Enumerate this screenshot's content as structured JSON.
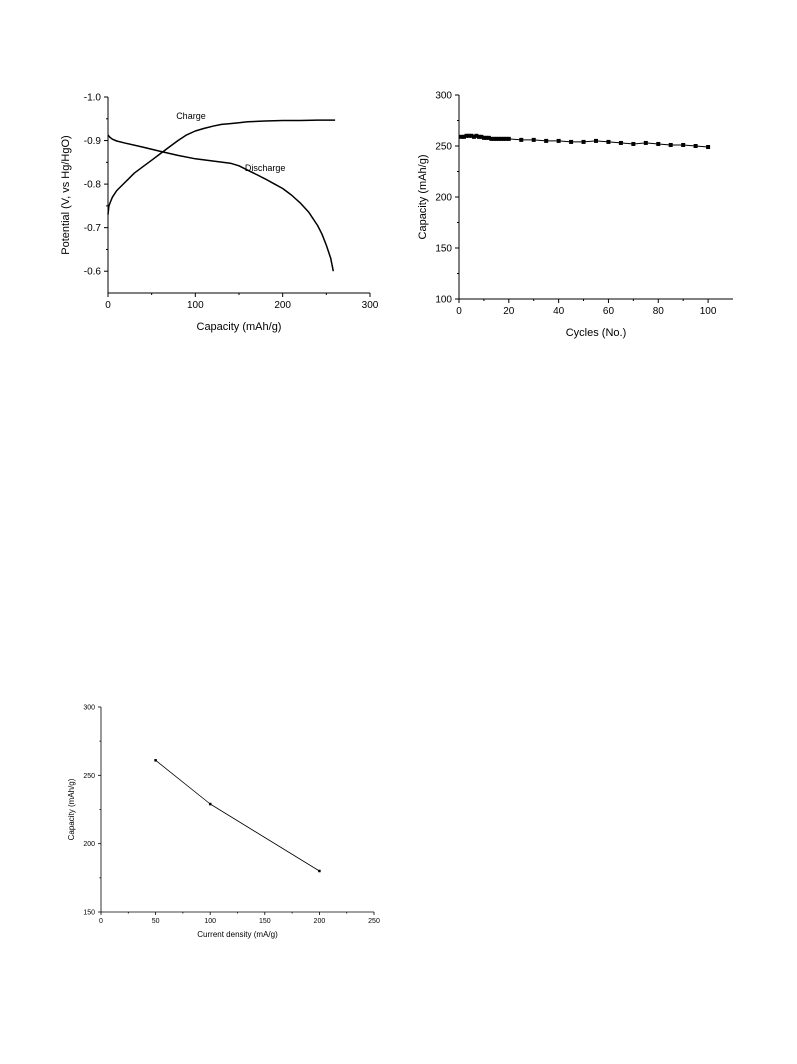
{
  "chart_data": [
    {
      "type": "line",
      "title": "",
      "xlabel": "Capacity (mAh/g)",
      "ylabel": "Potential (V, vs Hg/HgO)",
      "xlim": [
        0,
        300
      ],
      "ylim": [
        -0.55,
        -1.0
      ],
      "y_inverted": true,
      "xticks": [
        0,
        100,
        200,
        300
      ],
      "yticks": [
        -1.0,
        -0.9,
        -0.8,
        -0.7,
        -0.6
      ],
      "ytick_labels": [
        "-1.0",
        "-0.9",
        "-0.8",
        "-0.7",
        "-0.6"
      ],
      "grid": false,
      "series": [
        {
          "name": "Charge",
          "x": [
            0,
            1,
            3,
            5,
            10,
            20,
            30,
            40,
            50,
            60,
            70,
            80,
            90,
            100,
            110,
            120,
            130,
            140,
            150,
            160,
            170,
            180,
            200,
            220,
            240,
            260
          ],
          "y": [
            -0.73,
            -0.75,
            -0.76,
            -0.77,
            -0.785,
            -0.805,
            -0.825,
            -0.84,
            -0.855,
            -0.87,
            -0.885,
            -0.9,
            -0.913,
            -0.922,
            -0.928,
            -0.933,
            -0.937,
            -0.939,
            -0.941,
            -0.943,
            -0.944,
            -0.945,
            -0.946,
            -0.946,
            -0.947,
            -0.947
          ]
        },
        {
          "name": "Discharge",
          "x": [
            0,
            2,
            5,
            10,
            20,
            40,
            60,
            80,
            100,
            120,
            140,
            150,
            160,
            170,
            180,
            190,
            200,
            210,
            220,
            230,
            240,
            245,
            250,
            255,
            258
          ],
          "y": [
            -0.913,
            -0.908,
            -0.903,
            -0.899,
            -0.894,
            -0.885,
            -0.875,
            -0.866,
            -0.858,
            -0.853,
            -0.848,
            -0.842,
            -0.832,
            -0.822,
            -0.812,
            -0.801,
            -0.79,
            -0.775,
            -0.757,
            -0.735,
            -0.705,
            -0.685,
            -0.66,
            -0.63,
            -0.6
          ]
        }
      ],
      "annotations": [
        {
          "text": "Charge",
          "x": 95,
          "y": -0.95
        },
        {
          "text": "Discharge",
          "x": 180,
          "y": -0.83
        }
      ]
    },
    {
      "type": "scatter",
      "title": "",
      "xlabel": "Cycles (No.)",
      "ylabel": "Capacity (mAh/g)",
      "xlim": [
        0,
        110
      ],
      "ylim": [
        100,
        300
      ],
      "xticks": [
        0,
        20,
        40,
        60,
        80,
        100
      ],
      "yticks": [
        100,
        150,
        200,
        250,
        300
      ],
      "grid": false,
      "series": [
        {
          "name": "",
          "x": [
            1,
            2,
            3,
            4,
            5,
            6,
            7,
            8,
            9,
            10,
            11,
            12,
            13,
            14,
            15,
            16,
            17,
            18,
            19,
            20,
            25,
            30,
            35,
            40,
            45,
            50,
            55,
            60,
            65,
            70,
            75,
            80,
            85,
            90,
            95,
            100
          ],
          "y": [
            259,
            259,
            260,
            260,
            260,
            259,
            260,
            259,
            259,
            258,
            258,
            258,
            257,
            257,
            257,
            257,
            257,
            257,
            257,
            257,
            256,
            256,
            255,
            255,
            254,
            254,
            255,
            254,
            253,
            252,
            253,
            252,
            251,
            251,
            250,
            249
          ]
        }
      ]
    },
    {
      "type": "line",
      "title": "",
      "xlabel": "Current density (mA/g)",
      "ylabel": "Capacity (mAh/g)",
      "xlim": [
        0,
        250
      ],
      "ylim": [
        150,
        300
      ],
      "xticks": [
        0,
        50,
        100,
        150,
        200,
        250
      ],
      "yticks": [
        150,
        200,
        250,
        300
      ],
      "grid": false,
      "series": [
        {
          "name": "",
          "x": [
            50,
            100,
            200
          ],
          "y": [
            261,
            229,
            180
          ]
        }
      ]
    }
  ]
}
